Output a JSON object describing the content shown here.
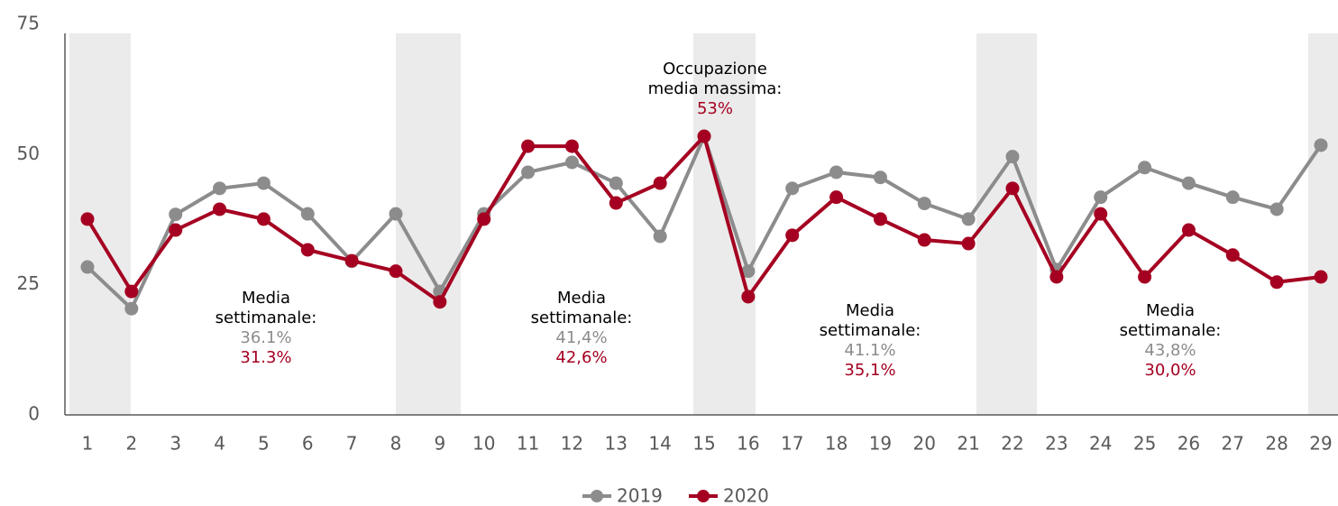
{
  "chart_data": {
    "type": "line",
    "categories": [
      "1",
      "2",
      "3",
      "4",
      "5",
      "6",
      "7",
      "8",
      "9",
      "10",
      "11",
      "12",
      "13",
      "14",
      "15",
      "16",
      "17",
      "18",
      "19",
      "20",
      "21",
      "22",
      "23",
      "24",
      "25",
      "26",
      "27",
      "28",
      "29"
    ],
    "series": [
      {
        "name": "2019",
        "color": "#8c8c8c",
        "values": [
          28.4,
          20.4,
          38.5,
          43.5,
          44.5,
          38.6,
          29.5,
          38.6,
          23.7,
          38.6,
          46.6,
          48.5,
          44.5,
          34.3,
          53.5,
          27.6,
          43.5,
          46.6,
          45.6,
          40.6,
          37.6,
          49.6,
          27.9,
          41.8,
          47.5,
          44.5,
          41.8,
          39.5,
          51.8
        ]
      },
      {
        "name": "2020",
        "color": "#a50021",
        "values": [
          37.6,
          23.7,
          35.5,
          39.5,
          37.6,
          31.7,
          29.6,
          27.6,
          21.7,
          37.6,
          51.6,
          51.6,
          40.7,
          44.5,
          53.5,
          22.7,
          34.5,
          41.8,
          37.6,
          33.6,
          32.9,
          43.5,
          26.5,
          38.6,
          26.5,
          35.5,
          30.7,
          25.5,
          26.5
        ]
      }
    ],
    "ylim": [
      0,
      75
    ],
    "yticks": [
      0,
      25,
      50,
      75
    ],
    "annotations": [
      {
        "lines": [
          "Media",
          "settimanale:"
        ],
        "value_2019": "36.1%",
        "value_2020": "31.3%"
      },
      {
        "lines": [
          "Media",
          "settimanale:"
        ],
        "value_2019": "41,4%",
        "value_2020": "42,6%"
      },
      {
        "lines": [
          "Media",
          "settimanale:"
        ],
        "value_2019": "41.1%",
        "value_2020": "35,1%"
      },
      {
        "lines": [
          "Media",
          "settimanale:"
        ],
        "value_2019": "43,8%",
        "value_2020": "30,0%"
      }
    ],
    "max_annotation": {
      "lines": [
        "Occupazione",
        "media massima:"
      ],
      "value": "53%"
    },
    "legend": "bottom"
  }
}
